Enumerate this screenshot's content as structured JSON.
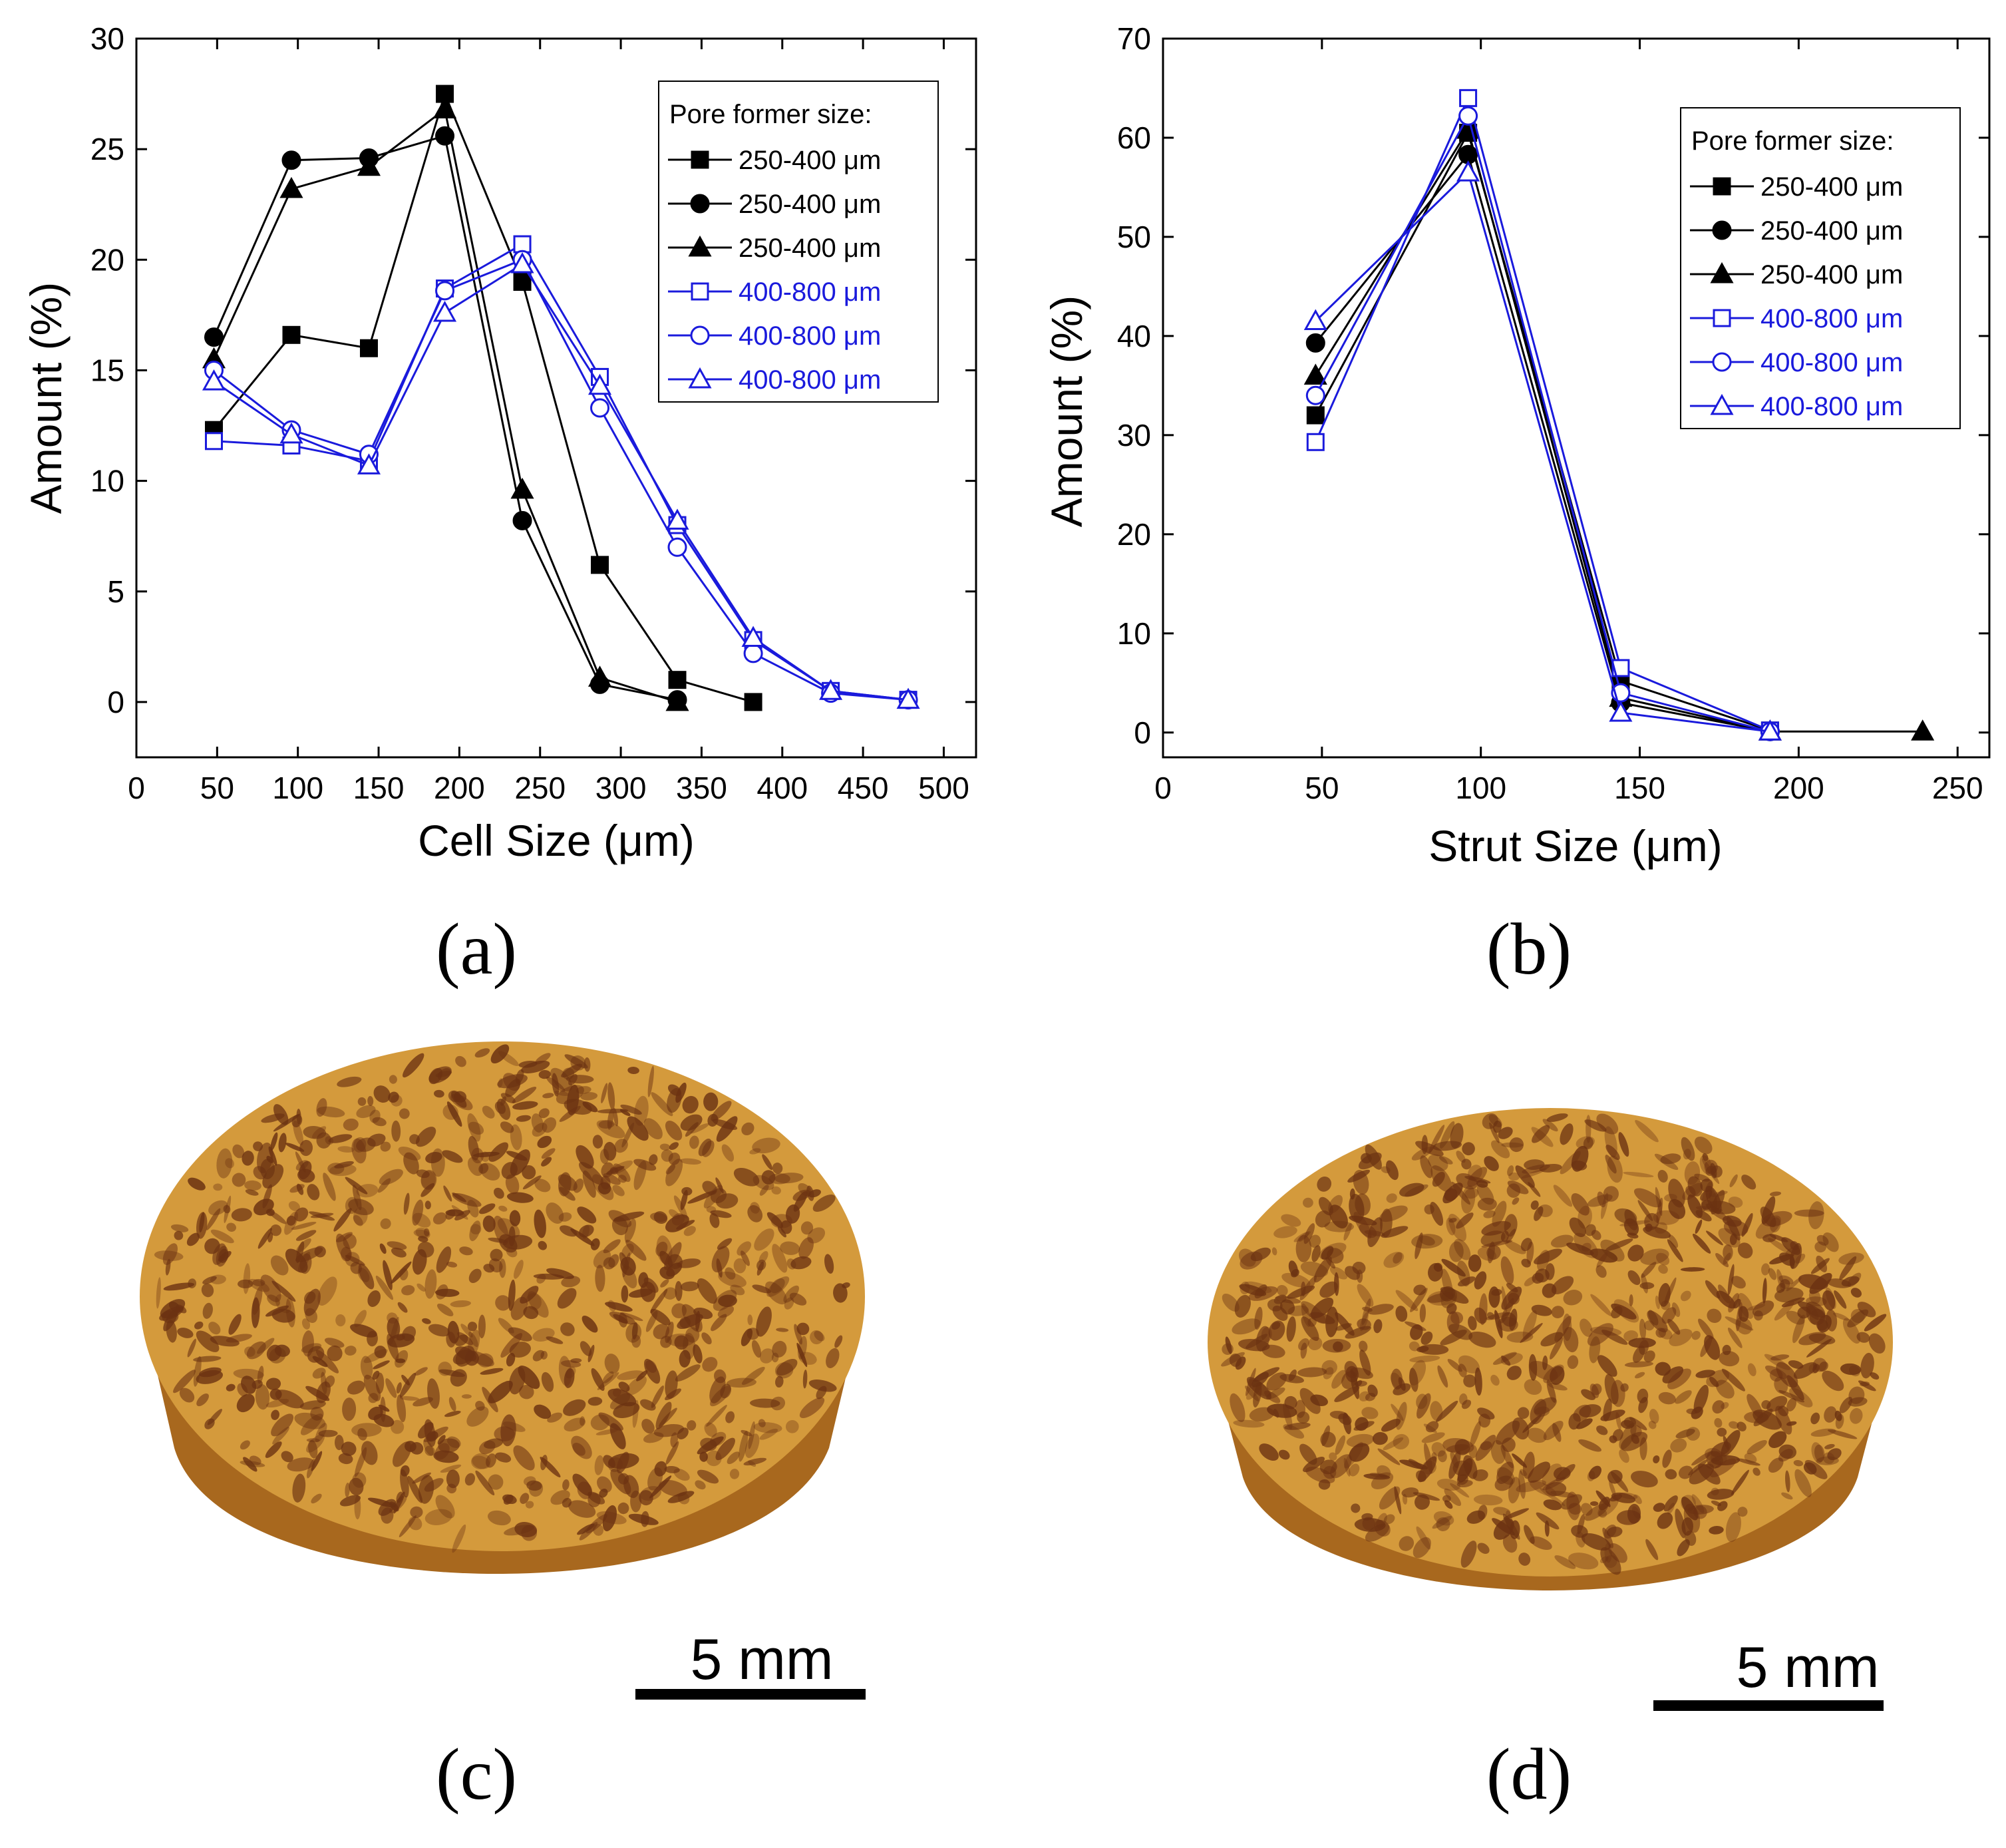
{
  "chart_data": [
    {
      "type": "line",
      "panel_label": "(a)",
      "xlabel": "Cell Size (μm)",
      "ylabel": "Amount  (%)",
      "xlim": [
        0,
        520
      ],
      "ylim": [
        -2.5,
        30
      ],
      "xticks": [
        0,
        50,
        100,
        150,
        200,
        250,
        300,
        350,
        400,
        450,
        500
      ],
      "yticks": [
        0,
        5,
        10,
        15,
        20,
        25,
        30
      ],
      "legend": {
        "title": "Pore former size:",
        "position": "top-right"
      },
      "series": [
        {
          "name": "250-400 μm",
          "marker": "square-filled",
          "color": "#000000",
          "x": [
            48,
            96,
            144,
            191,
            239,
            287,
            335,
            382
          ],
          "y": [
            12.3,
            16.6,
            16.0,
            27.5,
            19.0,
            6.2,
            1.0,
            0.0
          ]
        },
        {
          "name": "250-400 μm",
          "marker": "circle-filled",
          "color": "#000000",
          "x": [
            48,
            96,
            144,
            191,
            239,
            287,
            335
          ],
          "y": [
            16.5,
            24.5,
            24.6,
            25.6,
            8.2,
            0.8,
            0.1
          ]
        },
        {
          "name": "250-400 μm",
          "marker": "triangle-filled",
          "color": "#000000",
          "x": [
            48,
            96,
            144,
            191,
            239,
            287,
            335
          ],
          "y": [
            15.5,
            23.2,
            24.2,
            26.8,
            9.6,
            1.1,
            0.0
          ]
        },
        {
          "name": "400-800 μm",
          "marker": "square-open",
          "color": "#1a1adc",
          "x": [
            48,
            96,
            144,
            191,
            239,
            287,
            335,
            382,
            430,
            478
          ],
          "y": [
            11.8,
            11.6,
            10.9,
            18.7,
            20.7,
            14.7,
            8.0,
            2.8,
            0.5,
            0.1
          ]
        },
        {
          "name": "400-800 μm",
          "marker": "circle-open",
          "color": "#1a1adc",
          "x": [
            48,
            96,
            144,
            191,
            239,
            287,
            335,
            382,
            430,
            478
          ],
          "y": [
            15.0,
            12.3,
            11.2,
            18.6,
            20.0,
            13.3,
            7.0,
            2.2,
            0.4,
            0.1
          ]
        },
        {
          "name": "400-800 μm",
          "marker": "triangle-open",
          "color": "#1a1adc",
          "x": [
            48,
            96,
            144,
            191,
            239,
            287,
            335,
            382,
            430,
            478
          ],
          "y": [
            14.5,
            12.1,
            10.7,
            17.6,
            19.8,
            14.3,
            8.2,
            2.9,
            0.5,
            0.1
          ]
        }
      ]
    },
    {
      "type": "line",
      "panel_label": "(b)",
      "xlabel": "Strut Size (μm)",
      "ylabel": "Amount  (%)",
      "xlim": [
        0,
        260
      ],
      "ylim": [
        -2.5,
        70
      ],
      "xticks": [
        0,
        50,
        100,
        150,
        200,
        250
      ],
      "yticks": [
        0,
        10,
        20,
        30,
        40,
        50,
        60,
        70
      ],
      "legend": {
        "title": "Pore former size:",
        "position": "top-right"
      },
      "series": [
        {
          "name": "250-400 μm",
          "marker": "square-filled",
          "color": "#000000",
          "x": [
            48,
            96,
            144,
            191
          ],
          "y": [
            32.0,
            60.5,
            5.2,
            0.2
          ]
        },
        {
          "name": "250-400 μm",
          "marker": "circle-filled",
          "color": "#000000",
          "x": [
            48,
            96,
            144,
            191
          ],
          "y": [
            39.3,
            58.3,
            3.0,
            0.1
          ]
        },
        {
          "name": "250-400 μm",
          "marker": "triangle-filled",
          "color": "#000000",
          "x": [
            48,
            96,
            144,
            191,
            239
          ],
          "y": [
            36.0,
            60.8,
            3.5,
            0.1,
            0.1
          ]
        },
        {
          "name": "400-800 μm",
          "marker": "square-open",
          "color": "#1a1adc",
          "x": [
            48,
            96,
            144,
            191
          ],
          "y": [
            29.3,
            64.0,
            6.5,
            0.2
          ]
        },
        {
          "name": "400-800 μm",
          "marker": "circle-open",
          "color": "#1a1adc",
          "x": [
            48,
            96,
            144,
            191
          ],
          "y": [
            34.0,
            62.2,
            4.0,
            0.1
          ]
        },
        {
          "name": "400-800 μm",
          "marker": "triangle-open",
          "color": "#1a1adc",
          "x": [
            48,
            96,
            144,
            191
          ],
          "y": [
            41.5,
            56.5,
            2.0,
            0.1
          ]
        }
      ]
    }
  ],
  "images": [
    {
      "panel_label": "(c)",
      "description_name": "porous sample render",
      "scale_bar_label": "5 mm",
      "colors": {
        "top": "#d49a3c",
        "side": "#a8681e",
        "pore": "#6b3212"
      }
    },
    {
      "panel_label": "(d)",
      "description_name": "porous sample render",
      "scale_bar_label": "5 mm",
      "colors": {
        "top": "#d49a3c",
        "side": "#a8681e",
        "pore": "#6b3212"
      }
    }
  ]
}
